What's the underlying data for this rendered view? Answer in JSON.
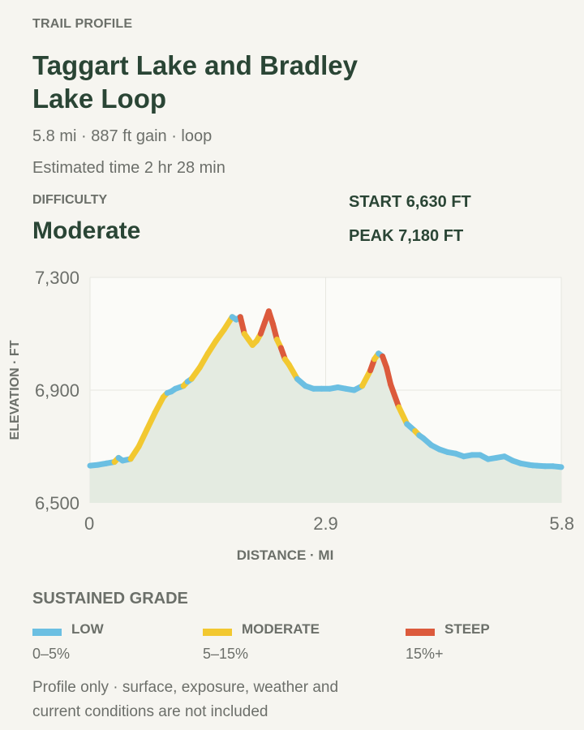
{
  "header": {
    "eyebrow": "TRAIL PROFILE",
    "title": "Taggart Lake and Bradley Lake Loop",
    "summary": "5.8 mi · 887 ft gain · loop",
    "estimated_time": "Estimated time 2 hr 28 min"
  },
  "difficulty": {
    "label": "DIFFICULTY",
    "value": "Moderate"
  },
  "stats": {
    "start": "START 6,630 FT",
    "peak": "PEAK 7,180 FT"
  },
  "legend": {
    "title": "SUSTAINED GRADE",
    "items": [
      {
        "name": "LOW",
        "range": "0–5%",
        "color": "#6bbfe2"
      },
      {
        "name": "MODERATE",
        "range": "5–15%",
        "color": "#f2c830"
      },
      {
        "name": "STEEP",
        "range": "15%+",
        "color": "#dc5a3c"
      }
    ]
  },
  "footnote": "Profile only · surface, exposure, weather and current conditions are not included",
  "chart_data": {
    "type": "area",
    "xlabel": "DISTANCE · MI",
    "ylabel": "ELEVATION · FT",
    "xlim": [
      0,
      5.8
    ],
    "ylim": [
      6500,
      7300
    ],
    "x_ticks": [
      "0",
      "2.9",
      "5.8"
    ],
    "y_ticks": [
      "7,300",
      "6,900",
      "6,500"
    ],
    "grid": true,
    "fill_color": "#e4ebe1",
    "colors": {
      "low": "#6bbfe2",
      "moderate": "#f2c830",
      "steep": "#dc5a3c"
    },
    "x": [
      0,
      0.1,
      0.2,
      0.3,
      0.35,
      0.4,
      0.5,
      0.6,
      0.7,
      0.8,
      0.9,
      0.95,
      1.0,
      1.05,
      1.15,
      1.2,
      1.25,
      1.35,
      1.45,
      1.55,
      1.65,
      1.75,
      1.8,
      1.85,
      1.9,
      1.95,
      2.0,
      2.05,
      2.1,
      2.15,
      2.2,
      2.25,
      2.3,
      2.35,
      2.4,
      2.45,
      2.55,
      2.65,
      2.75,
      2.85,
      2.95,
      3.05,
      3.15,
      3.25,
      3.35,
      3.45,
      3.5,
      3.55,
      3.6,
      3.65,
      3.7,
      3.8,
      3.9,
      4.0,
      4.05,
      4.1,
      4.2,
      4.3,
      4.4,
      4.5,
      4.6,
      4.7,
      4.8,
      4.9,
      5.0,
      5.1,
      5.2,
      5.3,
      5.4,
      5.45,
      5.5,
      5.6,
      5.7,
      5.8
    ],
    "y": [
      6632,
      6635,
      6640,
      6645,
      6660,
      6650,
      6656,
      6700,
      6760,
      6820,
      6875,
      6890,
      6895,
      6905,
      6915,
      6930,
      6940,
      6980,
      7030,
      7075,
      7115,
      7160,
      7150,
      7160,
      7100,
      7080,
      7060,
      7075,
      7100,
      7140,
      7180,
      7135,
      7080,
      7050,
      7010,
      6990,
      6940,
      6915,
      6905,
      6905,
      6905,
      6910,
      6905,
      6900,
      6915,
      6970,
      7010,
      7030,
      7020,
      6980,
      6920,
      6840,
      6780,
      6755,
      6740,
      6730,
      6705,
      6690,
      6680,
      6675,
      6665,
      6670,
      6670,
      6655,
      6660,
      6665,
      6650,
      6640,
      6635,
      6633,
      6632,
      6630,
      6630,
      6627
    ]
  }
}
